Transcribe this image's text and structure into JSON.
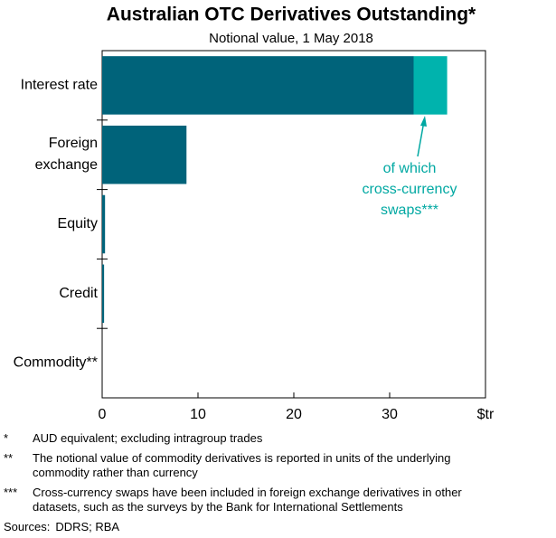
{
  "chart_data": {
    "type": "stacked-barh",
    "title": "Australian OTC Derivatives Outstanding*",
    "subtitle": "Notional value, 1 May 2018",
    "categories": [
      "Interest rate",
      "Foreign\nexchange",
      "Equity",
      "Credit",
      "Commodity**"
    ],
    "series": [
      {
        "color": "#00637a",
        "values": [
          32.5,
          8.8,
          0.3,
          0.2,
          null
        ]
      },
      {
        "color": "#00b3ad",
        "values": [
          3.5,
          null,
          null,
          null,
          null
        ]
      }
    ],
    "xlim": [
      0,
      40
    ],
    "xticks": [
      0,
      10,
      20,
      30,
      {
        "value": 40,
        "label": "$tr"
      }
    ],
    "annotation": [
      "of which",
      "cross-currency",
      "swaps***"
    ],
    "annotation_color": "#00a8a2",
    "footnotes": [
      {
        "marker": "*",
        "text": "AUD equivalent; excluding intragroup trades"
      },
      {
        "marker": "**",
        "text": "The notional value of commodity derivatives is reported in units of the underlying commodity rather than currency"
      },
      {
        "marker": "***",
        "text": "Cross-currency swaps have been included in foreign exchange derivatives in other datasets, such as the surveys by the Bank for International Settlements"
      }
    ],
    "sources": {
      "label": "Sources:",
      "text": "DDRS; RBA"
    }
  }
}
